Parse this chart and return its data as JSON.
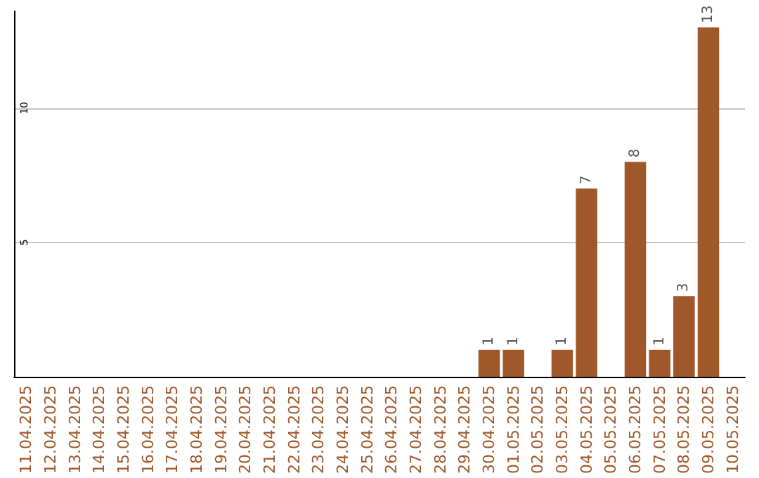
{
  "chart_data": {
    "type": "bar",
    "categories": [
      "11.04.2025",
      "12.04.2025",
      "13.04.2025",
      "14.04.2025",
      "15.04.2025",
      "16.04.2025",
      "17.04.2025",
      "18.04.2025",
      "19.04.2025",
      "20.04.2025",
      "21.04.2025",
      "22.04.2025",
      "23.04.2025",
      "24.04.2025",
      "25.04.2025",
      "26.04.2025",
      "27.04.2025",
      "28.04.2025",
      "29.04.2025",
      "30.04.2025",
      "01.05.2025",
      "02.05.2025",
      "03.05.2025",
      "04.05.2025",
      "05.05.2025",
      "06.05.2025",
      "07.05.2025",
      "08.05.2025",
      "09.05.2025",
      "10.05.2025"
    ],
    "values": [
      0,
      0,
      0,
      0,
      0,
      0,
      0,
      0,
      0,
      0,
      0,
      0,
      0,
      0,
      0,
      0,
      0,
      0,
      0,
      1,
      1,
      0,
      1,
      7,
      0,
      8,
      1,
      3,
      13,
      0
    ],
    "value_labels": [
      null,
      null,
      null,
      null,
      null,
      null,
      null,
      null,
      null,
      null,
      null,
      null,
      null,
      null,
      null,
      null,
      null,
      null,
      null,
      "1",
      "1",
      null,
      "1",
      "7",
      null,
      "8",
      "1",
      "3",
      "13",
      null
    ],
    "color": "#a0582a",
    "ylim": [
      0,
      13.6
    ],
    "yticks": [
      5,
      10
    ],
    "grid": "y"
  }
}
